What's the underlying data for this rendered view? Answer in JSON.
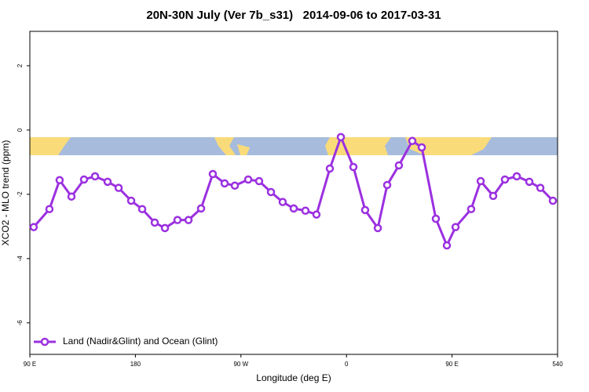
{
  "chart_data": {
    "type": "line",
    "title": "20N-30N July (Ver 7b_s31)   2014-09-06 to 2017-03-31",
    "x_label": "Longitude (deg E)",
    "y_label": "XCO2 - MLO trend (ppm)",
    "xlim": [
      90,
      540
    ],
    "xticks": [
      {
        "value": 90,
        "label": "90 E"
      },
      180,
      {
        "value": 270,
        "label": "90 W"
      },
      {
        "value": 360,
        "label": "0"
      },
      {
        "value": 450,
        "label": "90 E"
      },
      540
    ],
    "ylim": [
      -6.98,
      3.07
    ],
    "yticks": [
      -6,
      -4,
      -2,
      0,
      2
    ],
    "legend": "bottom-left",
    "series": [
      {
        "name": "Land (Nadir&Glint) and Ocean (Glint)",
        "color": "#9b30e0",
        "x": [
          93.3,
          106.7,
          115.4,
          125.5,
          136.2,
          145.6,
          156.3,
          165.7,
          176.4,
          185.8,
          196.5,
          205.2,
          215.9,
          225.3,
          236.0,
          246.0,
          256.1,
          264.8,
          276.2,
          285.5,
          295.6,
          305.6,
          315.0,
          325.0,
          334.4,
          345.8,
          355.2,
          365.9,
          375.9,
          386.7,
          394.7,
          404.7,
          416.1,
          424.2,
          436.2,
          445.6,
          453.0,
          466.3,
          474.4,
          485.1,
          495.1,
          505.2,
          515.9,
          525.3,
          536.0
        ],
        "values": [
          -3.02,
          -2.46,
          -1.56,
          -2.07,
          -1.54,
          -1.44,
          -1.61,
          -1.8,
          -2.2,
          -2.46,
          -2.88,
          -3.05,
          -2.8,
          -2.8,
          -2.44,
          -1.37,
          -1.66,
          -1.73,
          -1.54,
          -1.59,
          -1.93,
          -2.24,
          -2.44,
          -2.51,
          -2.63,
          -1.2,
          -0.22,
          -1.15,
          -2.49,
          -3.05,
          -1.71,
          -1.1,
          -0.34,
          -0.54,
          -2.76,
          -3.59,
          -3.02,
          -2.46,
          -1.59,
          -2.05,
          -1.54,
          -1.44,
          -1.61,
          -1.8,
          -2.2
        ]
      }
    ]
  }
}
